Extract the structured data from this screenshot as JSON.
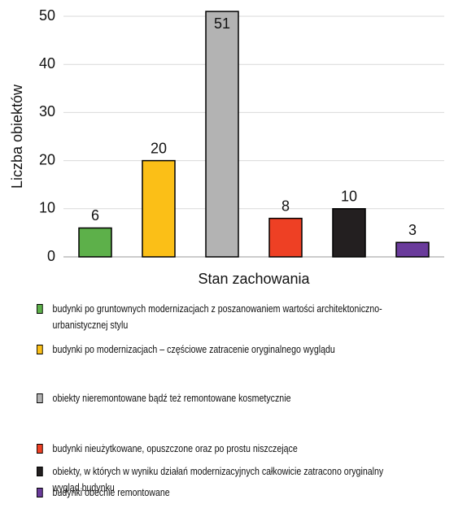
{
  "chart_data": {
    "type": "bar",
    "y_label": "Liczba obiektów",
    "x_label": "Stan zachowania",
    "categories": [
      "budynki po gruntownych modernizacjach z poszanowaniem wartości architektoniczno-urbanistycznej stylu",
      "budynki po modernizacjach – częściowe zatracenie oryginalnego wyglądu",
      "obiekty nieremontowane bądź też remontowane kosmetycznie",
      "budynki nieużytkowane, opuszczone oraz po prostu niszczejące",
      "obiekty, w których w wyniku działań modernizacyjnych całkowicie zatracono oryginalny wygląd budynku",
      "budynki obecnie remontowane"
    ],
    "values": [
      6,
      20,
      51,
      8,
      10,
      3
    ],
    "colors": [
      "#5db04a",
      "#fbbf17",
      "#b3b3b3",
      "#ee4024",
      "#231f20",
      "#6a3b9b"
    ],
    "ylim": [
      0,
      50
    ],
    "yticks": [
      0,
      10,
      20,
      30,
      40,
      50
    ],
    "grid": true
  }
}
